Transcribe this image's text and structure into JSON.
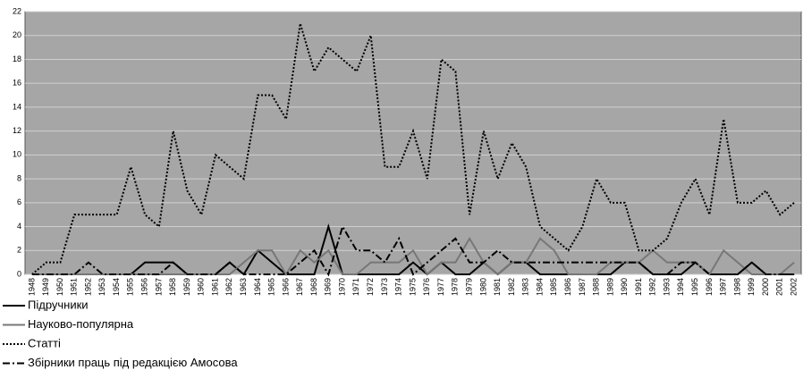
{
  "chart_data": {
    "type": "line",
    "categories": [
      "1948",
      "1949",
      "1950",
      "1951",
      "1952",
      "1953",
      "1954",
      "1955",
      "1956",
      "1957",
      "1958",
      "1959",
      "1960",
      "1961",
      "1962",
      "1963",
      "1964",
      "1965",
      "1966",
      "1967",
      "1968",
      "1969",
      "1970",
      "1971",
      "1972",
      "1973",
      "1974",
      "1975",
      "1976",
      "1977",
      "1978",
      "1979",
      "1980",
      "1981",
      "1982",
      "1983",
      "1984",
      "1985",
      "1986",
      "1987",
      "1988",
      "1989",
      "1990",
      "1991",
      "1992",
      "1993",
      "1994",
      "1995",
      "1996",
      "1997",
      "1998",
      "1999",
      "2000",
      "2001",
      "2002"
    ],
    "series": [
      {
        "name": "Підручники",
        "color": "#000000",
        "style": "solid",
        "values": [
          0,
          0,
          0,
          0,
          0,
          0,
          0,
          0,
          1,
          1,
          1,
          0,
          0,
          0,
          1,
          0,
          2,
          1,
          0,
          0,
          0,
          4,
          0,
          0,
          0,
          0,
          0,
          1,
          0,
          1,
          0,
          0,
          1,
          0,
          1,
          1,
          0,
          0,
          0,
          0,
          0,
          0,
          1,
          1,
          0,
          0,
          0,
          1,
          0,
          0,
          0,
          1,
          0,
          0,
          0
        ]
      },
      {
        "name": "Науково-популярна",
        "color": "#777777",
        "style": "solid",
        "values": [
          0,
          0,
          0,
          0,
          0,
          0,
          0,
          0,
          0,
          0,
          0,
          0,
          0,
          0,
          0,
          1,
          2,
          2,
          0,
          2,
          1,
          2,
          0,
          0,
          1,
          1,
          1,
          2,
          0,
          1,
          1,
          3,
          1,
          0,
          1,
          1,
          3,
          2,
          0,
          0,
          0,
          1,
          1,
          1,
          2,
          1,
          1,
          1,
          0,
          2,
          1,
          0,
          0,
          0,
          1
        ]
      },
      {
        "name": "Статті",
        "color": "#000000",
        "style": "dotted",
        "values": [
          0,
          1,
          1,
          5,
          5,
          5,
          5,
          9,
          5,
          4,
          12,
          7,
          5,
          10,
          9,
          8,
          15,
          15,
          13,
          21,
          17,
          19,
          18,
          17,
          20,
          9,
          9,
          12,
          8,
          18,
          17,
          5,
          12,
          8,
          11,
          9,
          4,
          3,
          2,
          4,
          8,
          6,
          6,
          2,
          2,
          3,
          6,
          8,
          5,
          13,
          6,
          6,
          7,
          5,
          6
        ]
      },
      {
        "name": "Збірники праць під редакцією Амосова",
        "color": "#000000",
        "style": "dashdot",
        "values": [
          0,
          0,
          0,
          0,
          1,
          0,
          0,
          0,
          0,
          0,
          1,
          0,
          0,
          0,
          1,
          0,
          0,
          0,
          0,
          1,
          2,
          0,
          4,
          2,
          2,
          1,
          3,
          0,
          1,
          2,
          3,
          1,
          1,
          2,
          1,
          1,
          1,
          1,
          1,
          1,
          1,
          1,
          1,
          1,
          0,
          0,
          1,
          1,
          0,
          0,
          0,
          1,
          0,
          0,
          0
        ]
      }
    ],
    "ylim": [
      0,
      22
    ],
    "yticks": [
      0,
      2,
      4,
      6,
      8,
      10,
      12,
      14,
      16,
      18,
      20,
      22
    ],
    "grid": true
  }
}
